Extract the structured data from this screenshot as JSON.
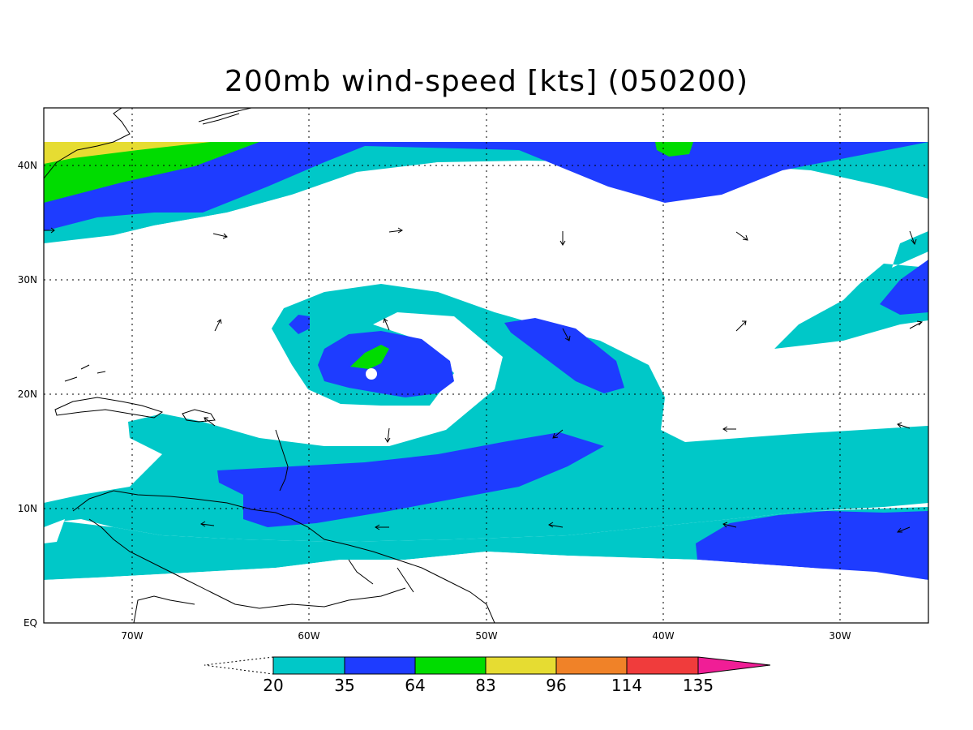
{
  "title": "200mb wind-speed [kts] (050200)",
  "axes": {
    "lon_labels": [
      "70W",
      "60W",
      "50W",
      "40W",
      "30W"
    ],
    "lat_labels": [
      "EQ",
      "10N",
      "20N",
      "30N",
      "40N"
    ]
  },
  "colorbar": {
    "levels": [
      "20",
      "35",
      "64",
      "83",
      "96",
      "114",
      "135"
    ],
    "colors": [
      "#00c8c8",
      "#1e3cff",
      "#00dc00",
      "#e6dc32",
      "#f08228",
      "#f03c3c",
      "#f01e96"
    ]
  },
  "colors": {
    "cyan": "#00c8c8",
    "blue": "#1e3cff",
    "green": "#00dc00",
    "yellow": "#e6dc32",
    "coast": "#000000"
  }
}
